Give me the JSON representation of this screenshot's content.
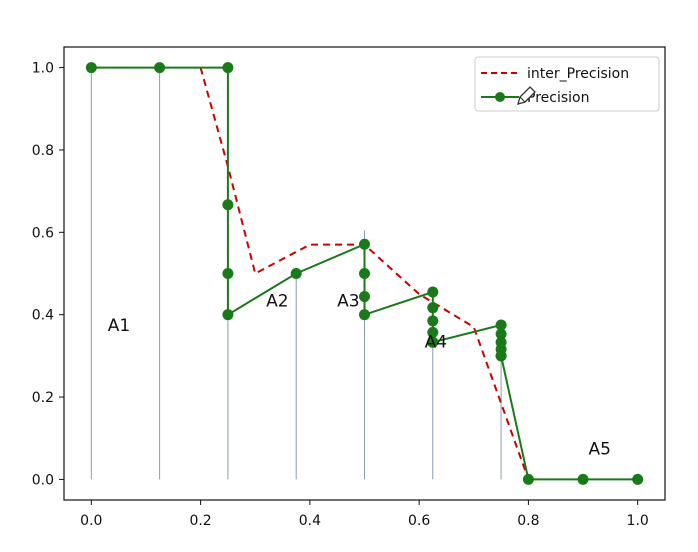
{
  "chart_data": {
    "type": "line",
    "xlim": [
      -0.05,
      1.05
    ],
    "ylim": [
      -0.05,
      1.05
    ],
    "xticks": [
      0.0,
      0.2,
      0.4,
      0.6,
      0.8,
      1.0
    ],
    "xtick_labels": [
      "0.0",
      "0.2",
      "0.4",
      "0.6",
      "0.8",
      "1.0"
    ],
    "yticks": [
      0.0,
      0.2,
      0.4,
      0.6,
      0.8,
      1.0
    ],
    "ytick_labels": [
      "0.0",
      "0.2",
      "0.4",
      "0.6",
      "0.8",
      "1.0"
    ],
    "grid": false,
    "legend_position": "top-right",
    "series": [
      {
        "name": "inter_Precision",
        "style": "dashed",
        "color": "#cc0000",
        "x": [
          0.2,
          0.25,
          0.3,
          0.4,
          0.5,
          0.6,
          0.7,
          0.8
        ],
        "y": [
          1.0,
          0.76,
          0.5,
          0.57,
          0.57,
          0.45,
          0.37,
          0.0
        ]
      },
      {
        "name": "Precision",
        "style": "solid-markers",
        "color": "#1a7a1a",
        "x": [
          0.0,
          0.125,
          0.25,
          0.25,
          0.25,
          0.25,
          0.375,
          0.5,
          0.5,
          0.5,
          0.5,
          0.625,
          0.625,
          0.625,
          0.625,
          0.625,
          0.625,
          0.75,
          0.75,
          0.75,
          0.75,
          0.75,
          0.75,
          0.8,
          0.9,
          1.0
        ],
        "y": [
          1.0,
          1.0,
          1.0,
          0.667,
          0.5,
          0.4,
          0.5,
          0.571,
          0.5,
          0.444,
          0.4,
          0.455,
          0.417,
          0.385,
          0.357,
          0.333,
          0.333,
          0.375,
          0.353,
          0.333,
          0.316,
          0.3,
          0.3,
          0.0,
          0.0,
          0.0
        ]
      }
    ],
    "vertical_lines": [
      {
        "x": 0.0,
        "top": 1.0
      },
      {
        "x": 0.125,
        "top": 1.0
      },
      {
        "x": 0.25,
        "top": 0.4
      },
      {
        "x": 0.375,
        "top": 0.5
      },
      {
        "x": 0.5,
        "top": 0.605
      },
      {
        "x": 0.625,
        "top": 0.34
      },
      {
        "x": 0.75,
        "top": 0.3
      }
    ],
    "annotations": [
      {
        "text": "A1",
        "x": 0.03,
        "y": 0.36
      },
      {
        "text": "A2",
        "x": 0.32,
        "y": 0.42
      },
      {
        "text": "A3",
        "x": 0.45,
        "y": 0.42
      },
      {
        "text": "A4",
        "x": 0.61,
        "y": 0.32
      },
      {
        "text": "A5",
        "x": 0.91,
        "y": 0.06
      }
    ]
  },
  "legend_icons": {
    "cursor": "pen-cursor-icon"
  }
}
